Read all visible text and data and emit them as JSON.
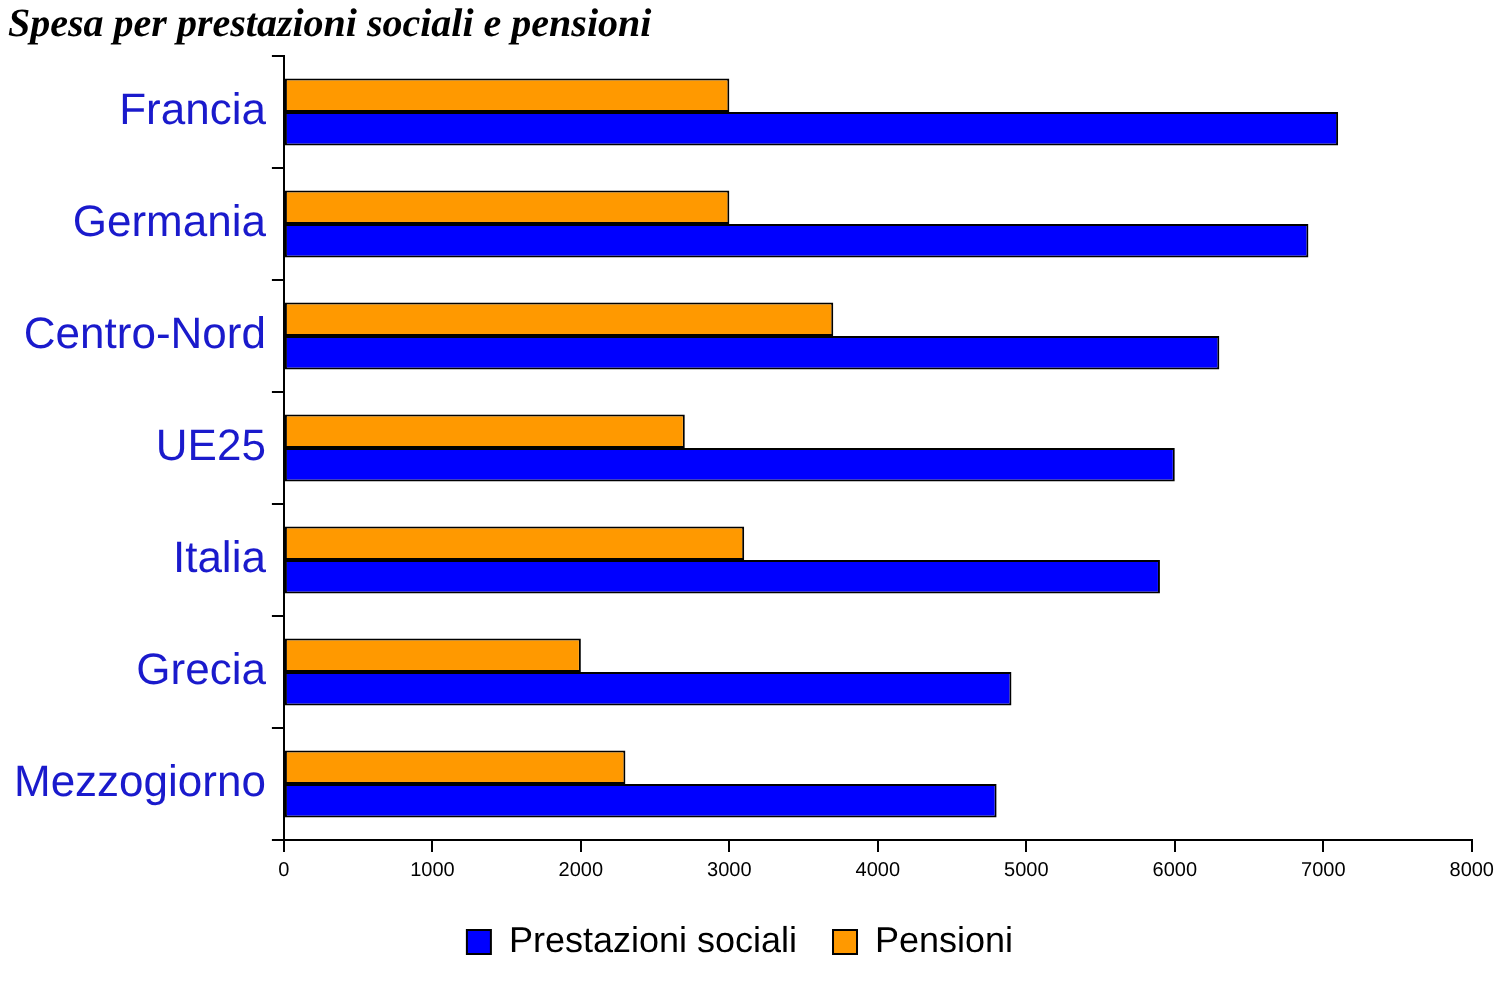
{
  "chart_data": {
    "type": "bar",
    "orientation": "horizontal",
    "title": "Spesa per prestazioni sociali e pensioni",
    "categories": [
      "Francia",
      "Germania",
      "Centro-Nord",
      "UE25",
      "Italia",
      "Grecia",
      "Mezzogiorno"
    ],
    "series": [
      {
        "name": "Prestazioni sociali",
        "color": "#0000ff",
        "values": [
          7100,
          6900,
          6300,
          6000,
          5900,
          4900,
          4800
        ]
      },
      {
        "name": "Pensioni",
        "color": "#ff9900",
        "values": [
          3000,
          3000,
          3700,
          2700,
          3100,
          2000,
          2300
        ]
      }
    ],
    "xlim": [
      0,
      8000
    ],
    "xticks": [
      0,
      1000,
      2000,
      3000,
      4000,
      5000,
      6000,
      7000,
      8000
    ],
    "grid": false,
    "legend": "bottom"
  }
}
